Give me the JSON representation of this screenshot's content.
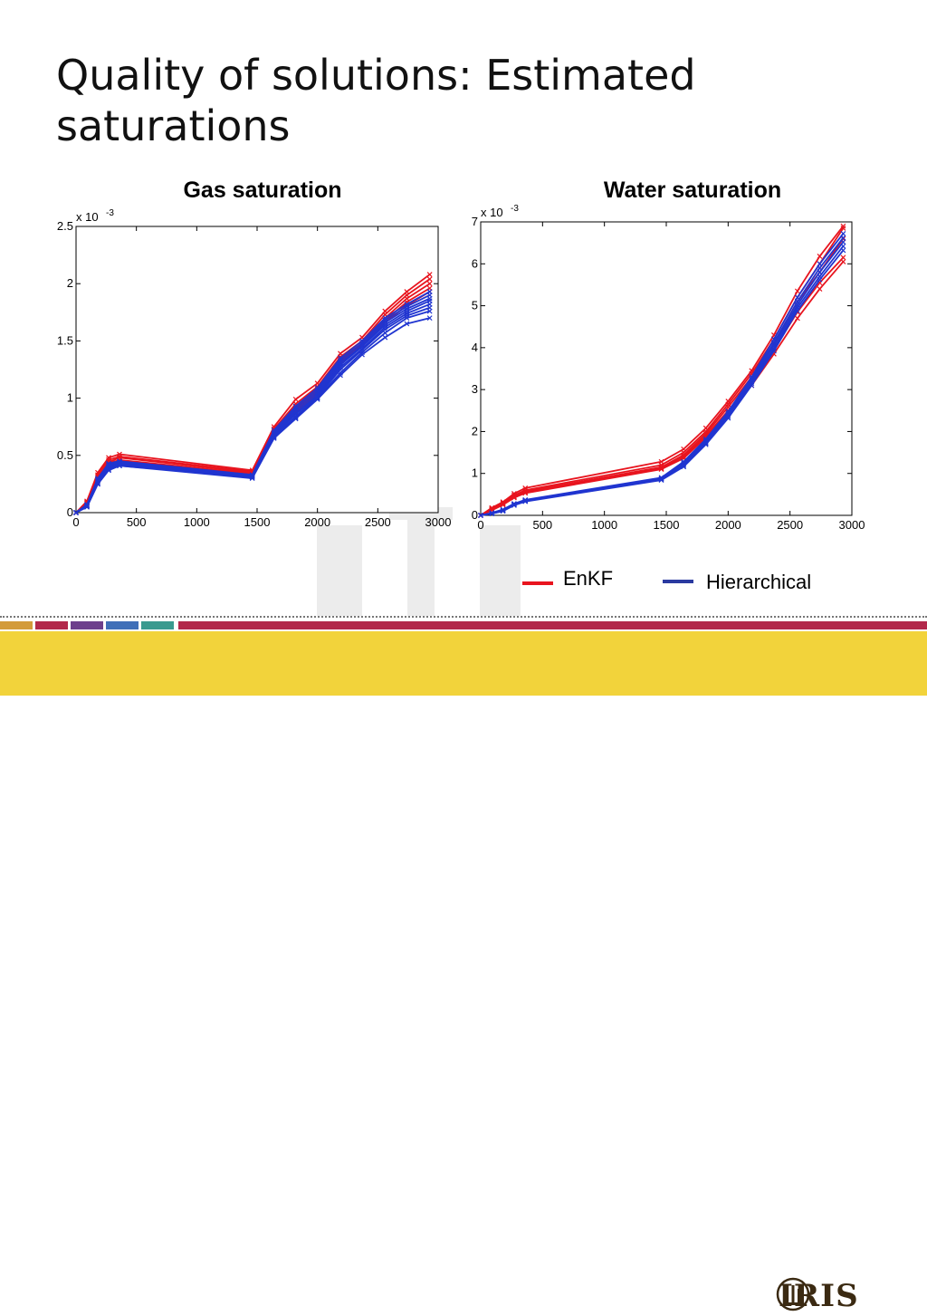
{
  "slide": {
    "title": "Quality of solutions: Estimated saturations"
  },
  "colors": {
    "enkf": "#e8141e",
    "hierarchical": "#2035d0",
    "footer": "#f2d33b",
    "bands": [
      "#d39b3a",
      "#b2284b",
      "#6d3f8c",
      "#3f6fb8",
      "#3a9a8f",
      "#b2284b"
    ]
  },
  "legend": {
    "enkf": "EnKF",
    "hierarchical": "Hierarchical"
  },
  "logo": {
    "text": "IRIS",
    "icon": "iris-candles-icon"
  },
  "chart_data": [
    {
      "type": "line",
      "title": "Gas saturation",
      "exponent_label": "x 10",
      "exponent_power": "-3",
      "xlim": [
        0,
        3000
      ],
      "ylim": [
        0,
        2.5
      ],
      "xticks": [
        0,
        500,
        1000,
        1500,
        2000,
        2500,
        3000
      ],
      "xtick_labels": [
        "0",
        "500",
        "1000",
        "1500",
        "2000",
        "2500",
        "3000"
      ],
      "yticks": [
        0,
        0.5,
        1,
        1.5,
        2,
        2.5
      ],
      "ytick_labels": [
        "0",
        "0.5",
        "1",
        "1.5",
        "2",
        "2.5"
      ],
      "grid": false,
      "x": [
        0,
        90,
        180,
        270,
        360,
        1460,
        1640,
        1820,
        2000,
        2190,
        2370,
        2560,
        2740,
        2930
      ],
      "series": [
        {
          "group": "enkf",
          "values": [
            0,
            0.1,
            0.35,
            0.48,
            0.51,
            0.37,
            0.75,
            0.99,
            1.13,
            1.39,
            1.53,
            1.76,
            1.93,
            2.08
          ]
        },
        {
          "group": "enkf",
          "values": [
            0,
            0.09,
            0.33,
            0.46,
            0.49,
            0.36,
            0.73,
            0.95,
            1.1,
            1.36,
            1.5,
            1.73,
            1.9,
            2.04
          ]
        },
        {
          "group": "enkf",
          "values": [
            0,
            0.08,
            0.31,
            0.44,
            0.48,
            0.35,
            0.72,
            0.92,
            1.08,
            1.34,
            1.48,
            1.7,
            1.87,
            2.0
          ]
        },
        {
          "group": "enkf",
          "values": [
            0,
            0.08,
            0.3,
            0.43,
            0.46,
            0.34,
            0.7,
            0.9,
            1.06,
            1.32,
            1.47,
            1.68,
            1.84,
            1.96
          ]
        },
        {
          "group": "enkf",
          "values": [
            0,
            0.07,
            0.28,
            0.42,
            0.45,
            0.34,
            0.69,
            0.88,
            1.04,
            1.3,
            1.45,
            1.66,
            1.81,
            1.93
          ]
        },
        {
          "group": "hierarchical",
          "values": [
            0,
            0.07,
            0.3,
            0.43,
            0.45,
            0.33,
            0.72,
            0.93,
            1.09,
            1.35,
            1.5,
            1.7,
            1.82,
            1.93
          ]
        },
        {
          "group": "hierarchical",
          "values": [
            0,
            0.07,
            0.29,
            0.42,
            0.44,
            0.33,
            0.7,
            0.91,
            1.07,
            1.33,
            1.48,
            1.68,
            1.8,
            1.9
          ]
        },
        {
          "group": "hierarchical",
          "values": [
            0,
            0.06,
            0.28,
            0.41,
            0.44,
            0.32,
            0.69,
            0.89,
            1.05,
            1.31,
            1.46,
            1.66,
            1.78,
            1.87
          ]
        },
        {
          "group": "hierarchical",
          "values": [
            0,
            0.06,
            0.27,
            0.4,
            0.43,
            0.32,
            0.68,
            0.87,
            1.03,
            1.29,
            1.45,
            1.64,
            1.76,
            1.85
          ]
        },
        {
          "group": "hierarchical",
          "values": [
            0,
            0.06,
            0.27,
            0.39,
            0.43,
            0.31,
            0.67,
            0.86,
            1.02,
            1.27,
            1.43,
            1.62,
            1.74,
            1.82
          ]
        },
        {
          "group": "hierarchical",
          "values": [
            0,
            0.05,
            0.26,
            0.38,
            0.42,
            0.31,
            0.66,
            0.84,
            1.01,
            1.25,
            1.42,
            1.6,
            1.72,
            1.79
          ]
        },
        {
          "group": "hierarchical",
          "values": [
            0,
            0.05,
            0.25,
            0.37,
            0.41,
            0.31,
            0.65,
            0.83,
            1.0,
            1.22,
            1.4,
            1.57,
            1.7,
            1.76
          ]
        },
        {
          "group": "hierarchical",
          "values": [
            0,
            0.05,
            0.25,
            0.37,
            0.41,
            0.3,
            0.65,
            0.82,
            0.99,
            1.2,
            1.38,
            1.53,
            1.65,
            1.7
          ]
        }
      ]
    },
    {
      "type": "line",
      "title": "Water saturation",
      "exponent_label": "x 10",
      "exponent_power": "-3",
      "xlim": [
        0,
        3000
      ],
      "ylim": [
        0,
        7
      ],
      "xticks": [
        0,
        500,
        1000,
        1500,
        2000,
        2500,
        3000
      ],
      "xtick_labels": [
        "0",
        "500",
        "1000",
        "1500",
        "2000",
        "2500",
        "3000"
      ],
      "yticks": [
        0,
        1,
        2,
        3,
        4,
        5,
        6,
        7
      ],
      "ytick_labels": [
        "0",
        "1",
        "2",
        "3",
        "4",
        "5",
        "6",
        "7"
      ],
      "grid": false,
      "x": [
        0,
        90,
        180,
        270,
        360,
        1460,
        1640,
        1820,
        2000,
        2190,
        2370,
        2560,
        2740,
        2930
      ],
      "series": [
        {
          "group": "enkf",
          "values": [
            0,
            0.18,
            0.32,
            0.52,
            0.65,
            1.28,
            1.58,
            2.08,
            2.72,
            3.45,
            4.3,
            5.35,
            6.18,
            6.9
          ]
        },
        {
          "group": "enkf",
          "values": [
            0,
            0.16,
            0.3,
            0.48,
            0.6,
            1.2,
            1.5,
            2.0,
            2.65,
            3.38,
            4.2,
            5.2,
            6.0,
            6.85
          ]
        },
        {
          "group": "enkf",
          "values": [
            0,
            0.14,
            0.28,
            0.45,
            0.57,
            1.15,
            1.44,
            1.95,
            2.58,
            3.3,
            4.1,
            5.1,
            5.8,
            6.6
          ]
        },
        {
          "group": "enkf",
          "values": [
            0,
            0.13,
            0.26,
            0.43,
            0.55,
            1.12,
            1.4,
            1.9,
            2.5,
            3.2,
            3.95,
            4.85,
            5.55,
            6.15
          ]
        },
        {
          "group": "enkf",
          "values": [
            0,
            0.12,
            0.25,
            0.42,
            0.53,
            1.1,
            1.36,
            1.86,
            2.45,
            3.1,
            3.85,
            4.7,
            5.4,
            6.05
          ]
        },
        {
          "group": "hierarchical",
          "values": [
            0,
            0.06,
            0.14,
            0.28,
            0.37,
            0.9,
            1.28,
            1.82,
            2.48,
            3.3,
            4.2,
            5.2,
            6.0,
            6.72
          ]
        },
        {
          "group": "hierarchical",
          "values": [
            0,
            0.05,
            0.13,
            0.27,
            0.36,
            0.88,
            1.25,
            1.78,
            2.43,
            3.25,
            4.12,
            5.1,
            5.9,
            6.62
          ]
        },
        {
          "group": "hierarchical",
          "values": [
            0,
            0.05,
            0.12,
            0.26,
            0.35,
            0.87,
            1.22,
            1.75,
            2.4,
            3.2,
            4.05,
            5.02,
            5.8,
            6.52
          ]
        },
        {
          "group": "hierarchical",
          "values": [
            0,
            0.04,
            0.11,
            0.25,
            0.34,
            0.85,
            1.19,
            1.72,
            2.36,
            3.15,
            3.98,
            4.95,
            5.7,
            6.42
          ]
        },
        {
          "group": "hierarchical",
          "values": [
            0,
            0.04,
            0.1,
            0.24,
            0.33,
            0.84,
            1.16,
            1.69,
            2.32,
            3.1,
            3.92,
            4.88,
            5.62,
            6.32
          ]
        }
      ]
    }
  ]
}
